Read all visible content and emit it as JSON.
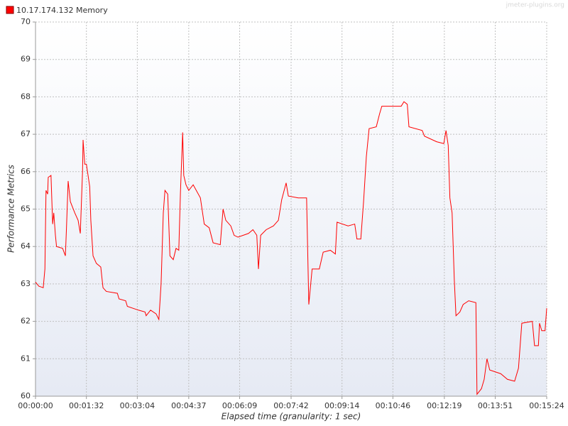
{
  "chart_data": {
    "type": "line",
    "watermark": "jmeter-plugins.org",
    "x_label": "Elapsed time (granularity: 1 sec)",
    "y_label": "Performance Metrics",
    "xlim": [
      0,
      924
    ],
    "ylim": [
      60,
      70
    ],
    "xticks": [
      {
        "value": 0,
        "label": "00:00:00"
      },
      {
        "value": 92,
        "label": "00:01:32"
      },
      {
        "value": 184,
        "label": "00:03:04"
      },
      {
        "value": 277,
        "label": "00:04:37"
      },
      {
        "value": 369,
        "label": "00:06:09"
      },
      {
        "value": 462,
        "label": "00:07:42"
      },
      {
        "value": 554,
        "label": "00:09:14"
      },
      {
        "value": 646,
        "label": "00:10:46"
      },
      {
        "value": 739,
        "label": "00:12:19"
      },
      {
        "value": 831,
        "label": "00:13:51"
      },
      {
        "value": 924,
        "label": "00:15:24"
      }
    ],
    "yticks": [
      60,
      61,
      62,
      63,
      64,
      65,
      66,
      67,
      68,
      69,
      70
    ],
    "grid": true,
    "x": [
      0,
      6,
      14,
      17,
      19,
      22,
      23,
      28,
      31,
      33,
      36,
      38,
      49,
      54,
      56,
      59,
      63,
      71,
      77,
      81,
      85,
      86,
      89,
      92,
      98,
      100,
      104,
      110,
      118,
      122,
      128,
      148,
      151,
      163,
      166,
      186,
      198,
      200,
      208,
      218,
      223,
      227,
      231,
      234,
      239,
      243,
      249,
      254,
      259,
      262,
      266,
      268,
      272,
      277,
      285,
      298,
      305,
      314,
      321,
      334,
      339,
      344,
      353,
      359,
      366,
      385,
      393,
      400,
      403,
      407,
      417,
      430,
      439,
      445,
      453,
      457,
      475,
      490,
      494,
      500,
      513,
      520,
      533,
      542,
      545,
      565,
      577,
      581,
      588,
      593,
      598,
      603,
      616,
      622,
      626,
      642,
      661,
      666,
      672,
      675,
      699,
      703,
      725,
      738,
      742,
      746,
      749,
      753,
      757,
      760,
      767,
      773,
      783,
      796,
      798,
      806,
      811,
      816,
      821,
      841,
      853,
      866,
      873,
      879,
      898,
      902,
      909,
      911,
      915,
      921,
      924
    ],
    "series": [
      {
        "name": "10.17.174.132 Memory",
        "color": "#ff0000",
        "values": [
          63.05,
          62.94,
          62.9,
          63.4,
          65.5,
          65.4,
          65.85,
          65.9,
          64.6,
          64.9,
          64.3,
          64.0,
          63.95,
          63.75,
          64.5,
          65.75,
          65.2,
          64.9,
          64.7,
          64.35,
          66.0,
          66.85,
          66.2,
          66.2,
          65.6,
          64.7,
          63.75,
          63.55,
          63.45,
          62.9,
          62.8,
          62.75,
          62.6,
          62.55,
          62.4,
          62.3,
          62.25,
          62.15,
          62.3,
          62.2,
          62.05,
          63.0,
          64.9,
          65.5,
          65.4,
          63.75,
          63.65,
          63.95,
          63.9,
          65.45,
          67.05,
          65.9,
          65.65,
          65.5,
          65.65,
          65.3,
          64.6,
          64.5,
          64.1,
          64.05,
          65.0,
          64.7,
          64.55,
          64.3,
          64.25,
          64.35,
          64.45,
          64.3,
          63.4,
          64.3,
          64.45,
          64.55,
          64.7,
          65.25,
          65.7,
          65.35,
          65.3,
          65.3,
          62.45,
          63.4,
          63.4,
          63.85,
          63.9,
          63.8,
          64.65,
          64.55,
          64.6,
          64.2,
          64.2,
          65.2,
          66.4,
          67.15,
          67.2,
          67.55,
          67.75,
          67.75,
          67.75,
          67.87,
          67.8,
          67.2,
          67.1,
          66.95,
          66.8,
          66.75,
          67.1,
          66.7,
          65.3,
          64.9,
          63.1,
          62.15,
          62.25,
          62.45,
          62.55,
          62.5,
          60.05,
          60.2,
          60.45,
          61.0,
          60.7,
          60.6,
          60.45,
          60.4,
          60.75,
          61.95,
          62.0,
          61.35,
          61.35,
          61.95,
          61.75,
          61.75,
          62.35
        ]
      }
    ]
  }
}
